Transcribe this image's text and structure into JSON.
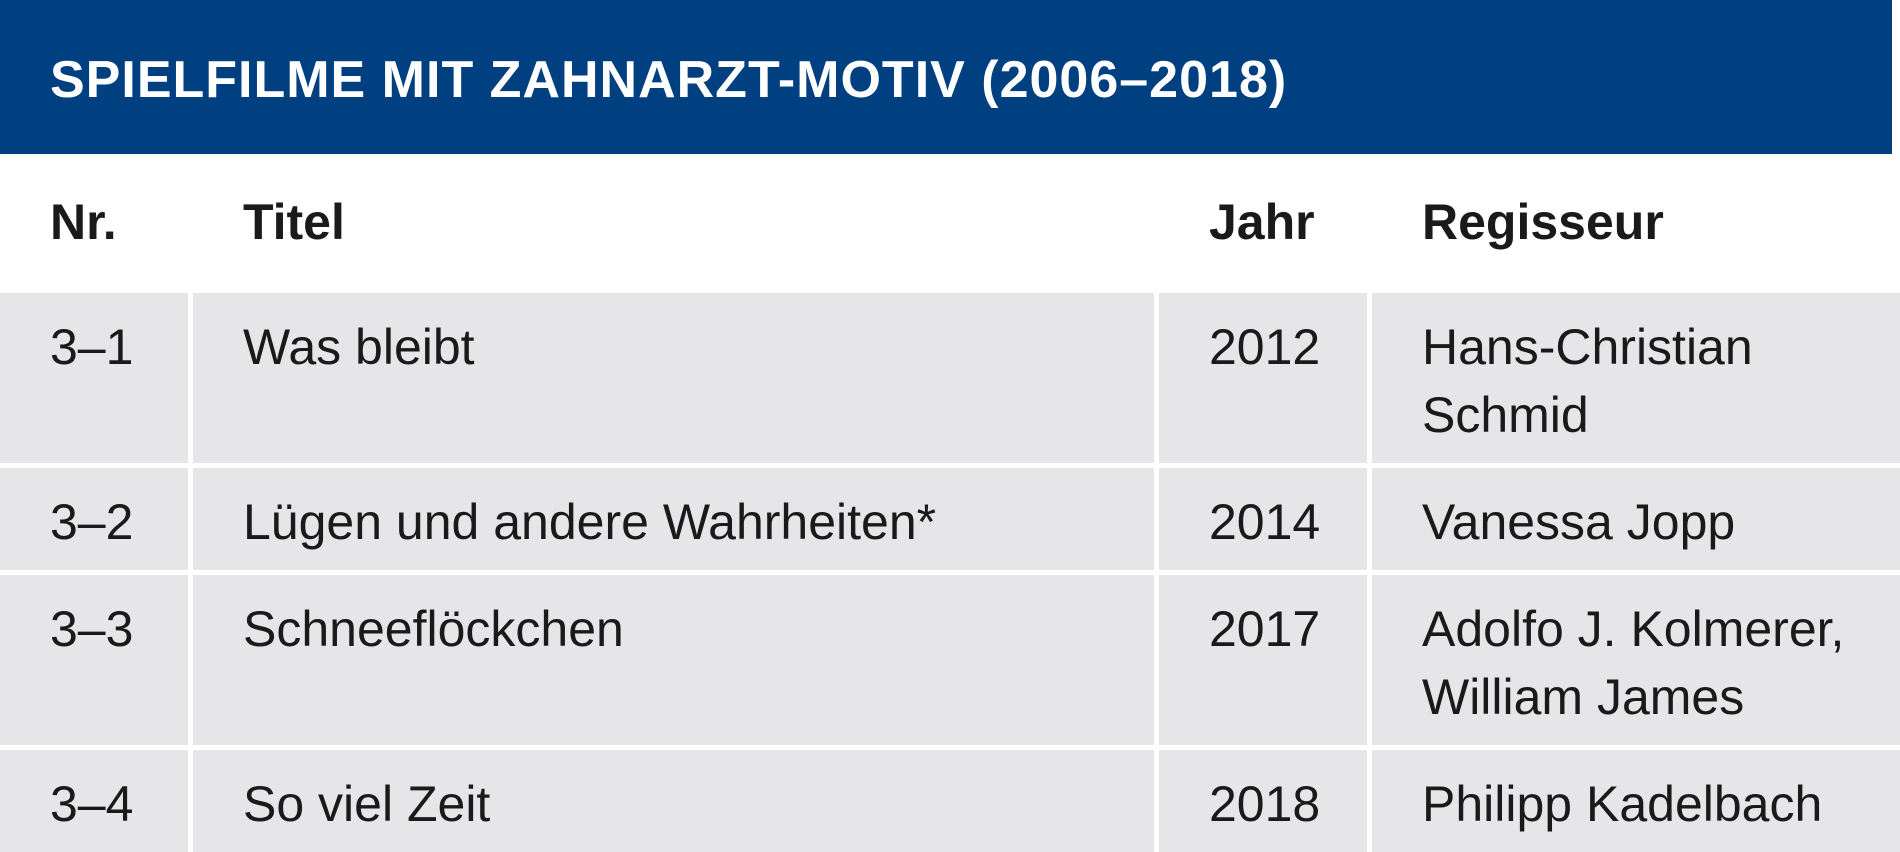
{
  "header": {
    "title": "SPIELFILME MIT ZAHNARZT-MOTIV (2006–2018)"
  },
  "table": {
    "columns": [
      "Nr.",
      "Titel",
      "Jahr",
      "Regisseur"
    ],
    "rows": [
      [
        "3–1",
        "Was bleibt",
        "2012",
        "Hans-Christian\nSchmid"
      ],
      [
        "3–2",
        "Lügen und andere Wahrheiten*",
        "2014",
        "Vanessa Jopp"
      ],
      [
        "3–3",
        "Schneeflöckchen",
        "2017",
        "Adolfo J. Kolmerer,\nWilliam James"
      ],
      [
        "3–4",
        "So viel Zeit",
        "2018",
        "Philipp Kadelbach"
      ]
    ]
  }
}
